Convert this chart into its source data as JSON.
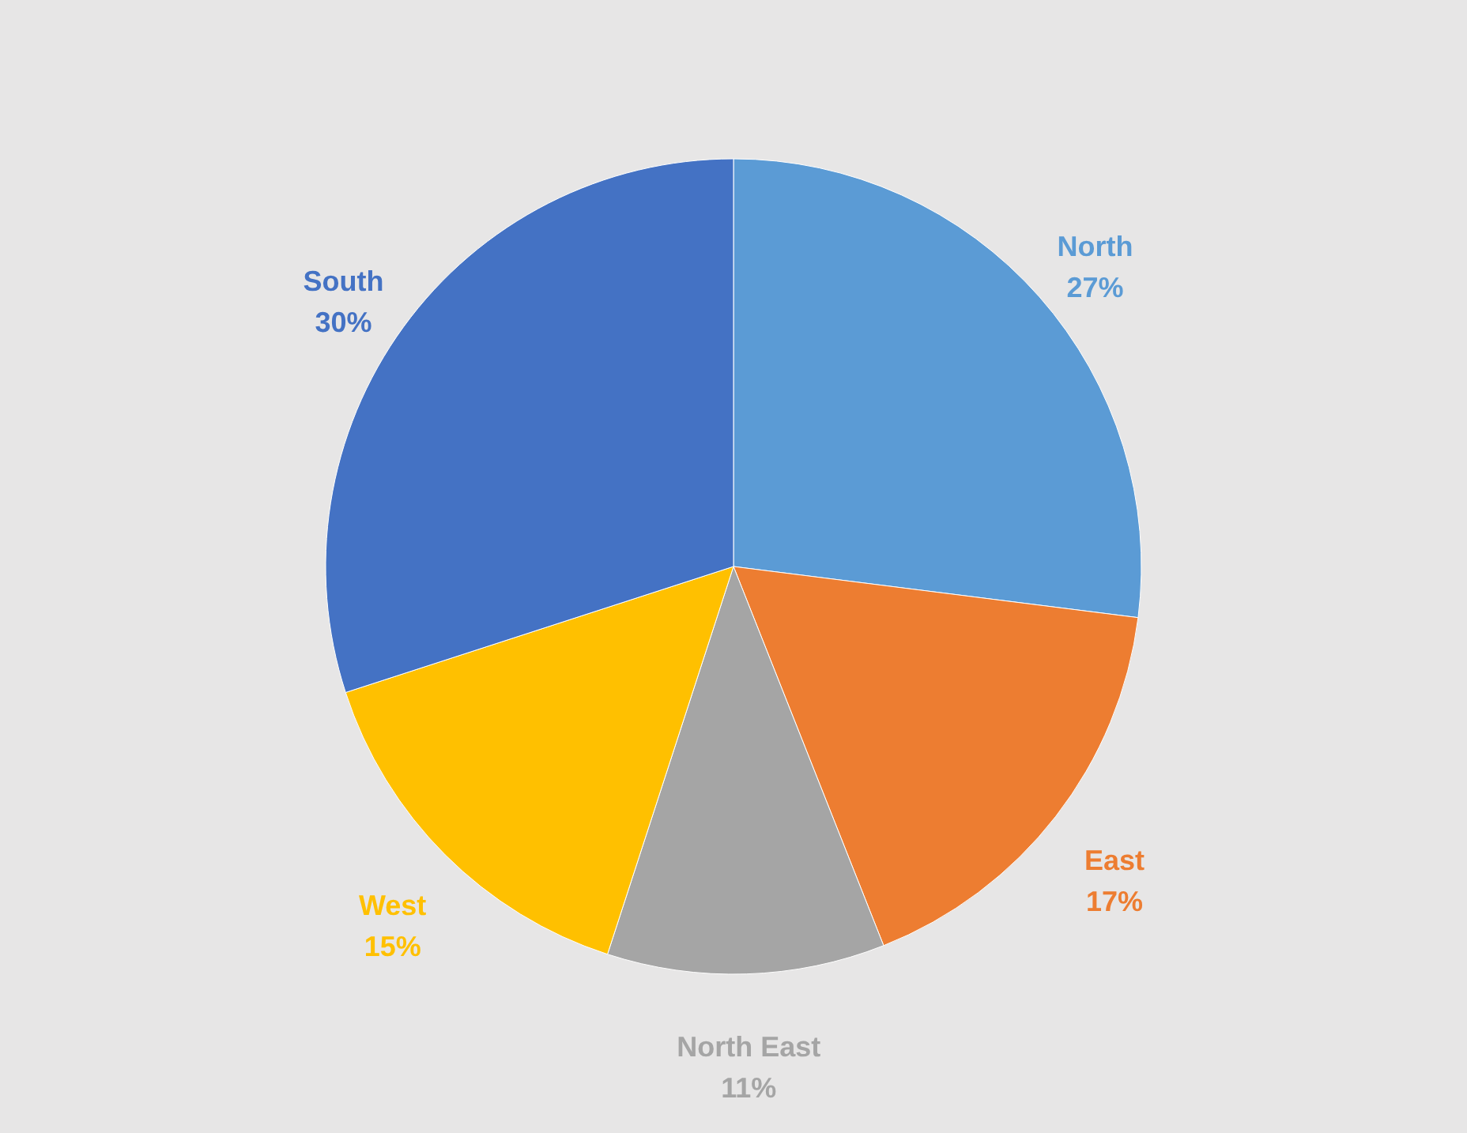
{
  "chart_data": {
    "type": "pie",
    "categories": [
      "North",
      "East",
      "North East",
      "West",
      "South"
    ],
    "values": [
      27,
      17,
      11,
      15,
      30
    ],
    "colors": [
      "#5b9bd5",
      "#ed7d31",
      "#a5a5a5",
      "#ffc000",
      "#4472c4"
    ],
    "value_labels": [
      "27%",
      "17%",
      "11%",
      "15%",
      "30%"
    ]
  }
}
